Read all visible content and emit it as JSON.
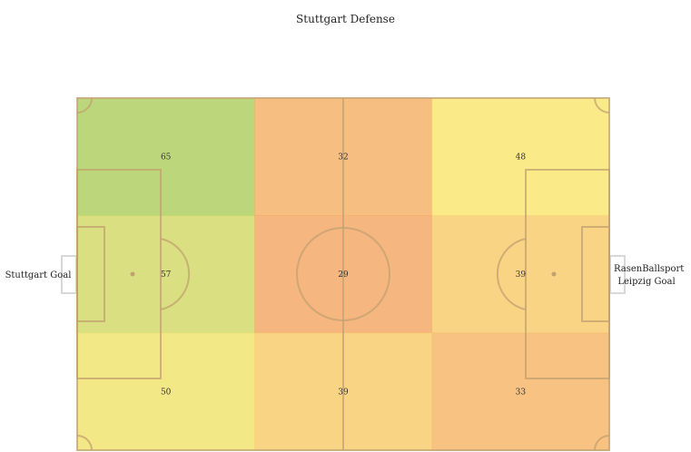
{
  "title": "Stuttgart Defense",
  "goal_labels": {
    "left": "Stuttgart Goal",
    "right_line1": "RasenBallsport",
    "right_line2": "Leipzig Goal"
  },
  "colors": {
    "high": "#a6c94f",
    "mid": "#fde561",
    "low": "#f19e55",
    "lines": "#c2a070"
  },
  "chart_data": {
    "type": "heatmap",
    "title": "Stuttgart Defense",
    "rows": [
      "top",
      "middle",
      "bottom"
    ],
    "columns": [
      "left-third",
      "middle-third",
      "right-third"
    ],
    "values": [
      [
        65,
        32,
        48
      ],
      [
        57,
        29,
        39
      ],
      [
        50,
        39,
        33
      ]
    ],
    "legend": "none",
    "grid": false
  }
}
